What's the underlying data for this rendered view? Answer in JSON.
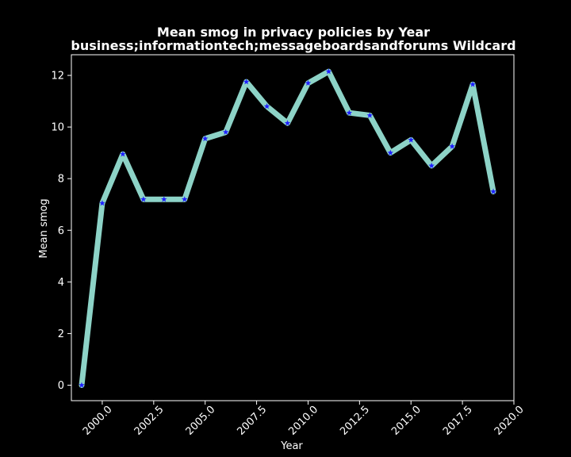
{
  "chart_data": {
    "type": "line",
    "title": "Mean smog in privacy policies by Year",
    "subtitle": "business;informationtech;messageboardsandforums Wildcard",
    "xlabel": "Year",
    "ylabel": "Mean smog",
    "xlim": [
      1998.5,
      2020.0
    ],
    "ylim": [
      -0.6,
      12.8
    ],
    "x_ticks": [
      2000.0,
      2002.5,
      2005.0,
      2007.5,
      2010.0,
      2012.5,
      2015.0,
      2017.5,
      2020.0
    ],
    "x_tick_labels": [
      "2000.0",
      "2002.5",
      "2005.0",
      "2007.5",
      "2010.0",
      "2012.5",
      "2015.0",
      "2017.5",
      "2020.0"
    ],
    "y_ticks": [
      0,
      2,
      4,
      6,
      8,
      10,
      12
    ],
    "y_tick_labels": [
      "0",
      "2",
      "4",
      "6",
      "8",
      "10",
      "12"
    ],
    "grid": false,
    "line_color": "#8dd3c7",
    "marker_color": "#1f1fff",
    "marker": "star",
    "series": [
      {
        "x": [
          1999,
          2000,
          2001,
          2002,
          2003,
          2004,
          2005,
          2006,
          2007,
          2008,
          2009,
          2010,
          2011,
          2012,
          2013,
          2014,
          2015,
          2016,
          2017,
          2018,
          2019
        ],
        "values": [
          0.0,
          7.05,
          8.95,
          7.2,
          7.2,
          7.2,
          9.55,
          9.8,
          11.75,
          10.8,
          10.15,
          11.7,
          12.15,
          10.55,
          10.45,
          9.0,
          9.5,
          8.5,
          9.25,
          11.65,
          7.5
        ]
      }
    ]
  }
}
